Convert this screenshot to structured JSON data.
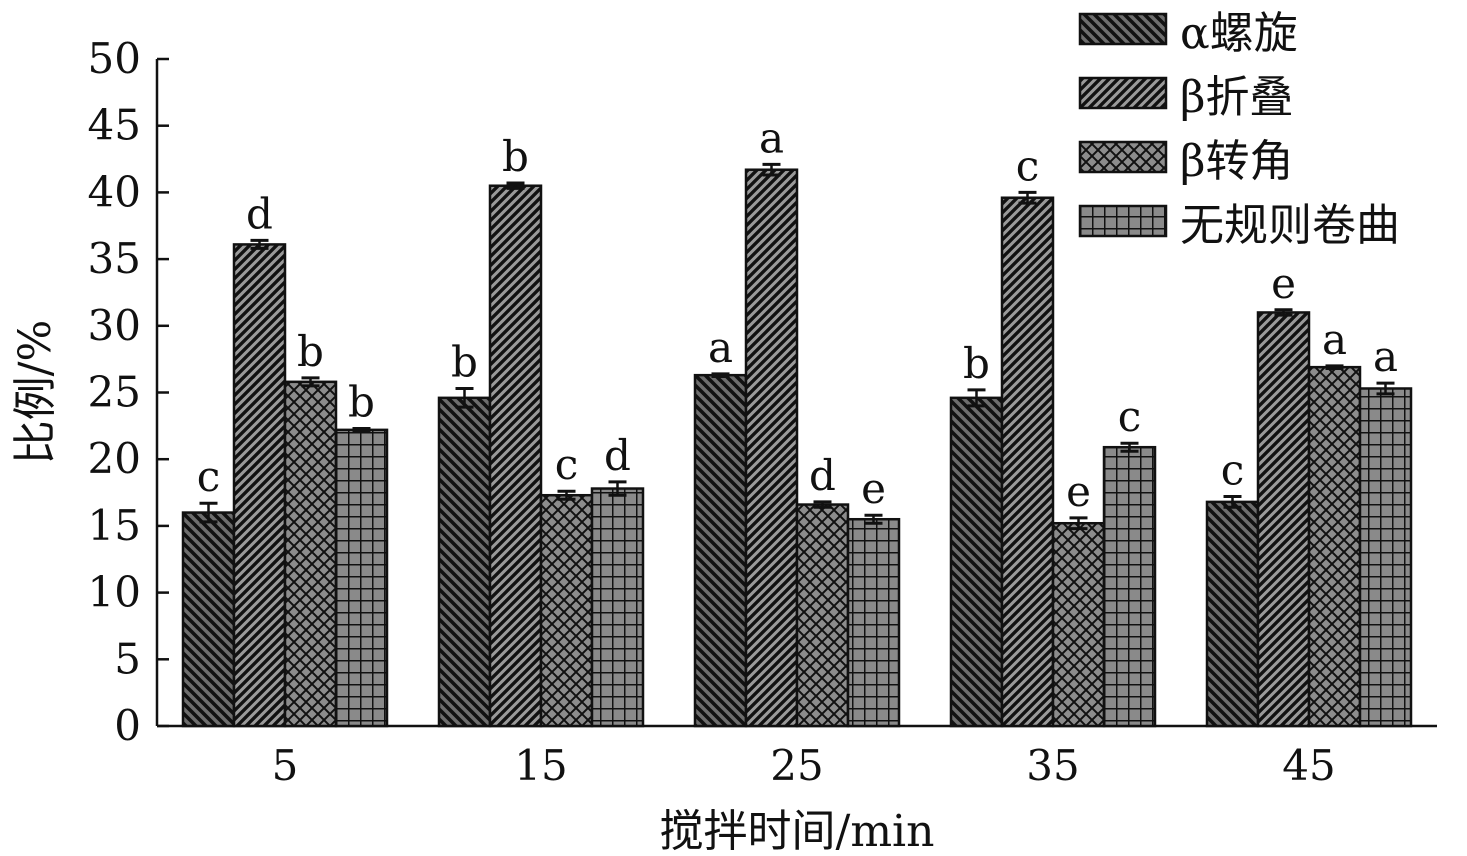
{
  "chart_data": {
    "type": "bar",
    "xlabel": "搅拌时间/min",
    "ylabel": "比例/%",
    "ylim": [
      0,
      50
    ],
    "yticks": [
      0,
      5,
      10,
      15,
      20,
      25,
      30,
      35,
      40,
      45,
      50
    ],
    "categories": [
      "5",
      "15",
      "25",
      "35",
      "45"
    ],
    "legend_position": "top-right",
    "grid": false,
    "series": [
      {
        "name": "α螺旋",
        "pattern": "diag-back",
        "values": [
          16.0,
          24.6,
          26.3,
          24.6,
          16.8
        ],
        "errors": [
          0.7,
          0.7,
          0.1,
          0.6,
          0.4
        ],
        "letters": [
          "c",
          "b",
          "a",
          "b",
          "c"
        ]
      },
      {
        "name": "β折叠",
        "pattern": "diag-fwd",
        "values": [
          36.1,
          40.5,
          41.7,
          39.6,
          31.0
        ],
        "errors": [
          0.3,
          0.2,
          0.4,
          0.4,
          0.2
        ],
        "letters": [
          "d",
          "b",
          "a",
          "c",
          "e"
        ]
      },
      {
        "name": "β转角",
        "pattern": "crosshatch",
        "values": [
          25.8,
          17.3,
          16.6,
          15.2,
          26.9
        ],
        "errors": [
          0.3,
          0.3,
          0.2,
          0.4,
          0.1
        ],
        "letters": [
          "b",
          "c",
          "d",
          "e",
          "a"
        ]
      },
      {
        "name": "无规则卷曲",
        "pattern": "grid",
        "values": [
          22.2,
          17.8,
          15.5,
          20.9,
          25.3
        ],
        "errors": [
          0.1,
          0.5,
          0.3,
          0.3,
          0.4
        ],
        "letters": [
          "b",
          "d",
          "e",
          "c",
          "a"
        ]
      }
    ]
  }
}
